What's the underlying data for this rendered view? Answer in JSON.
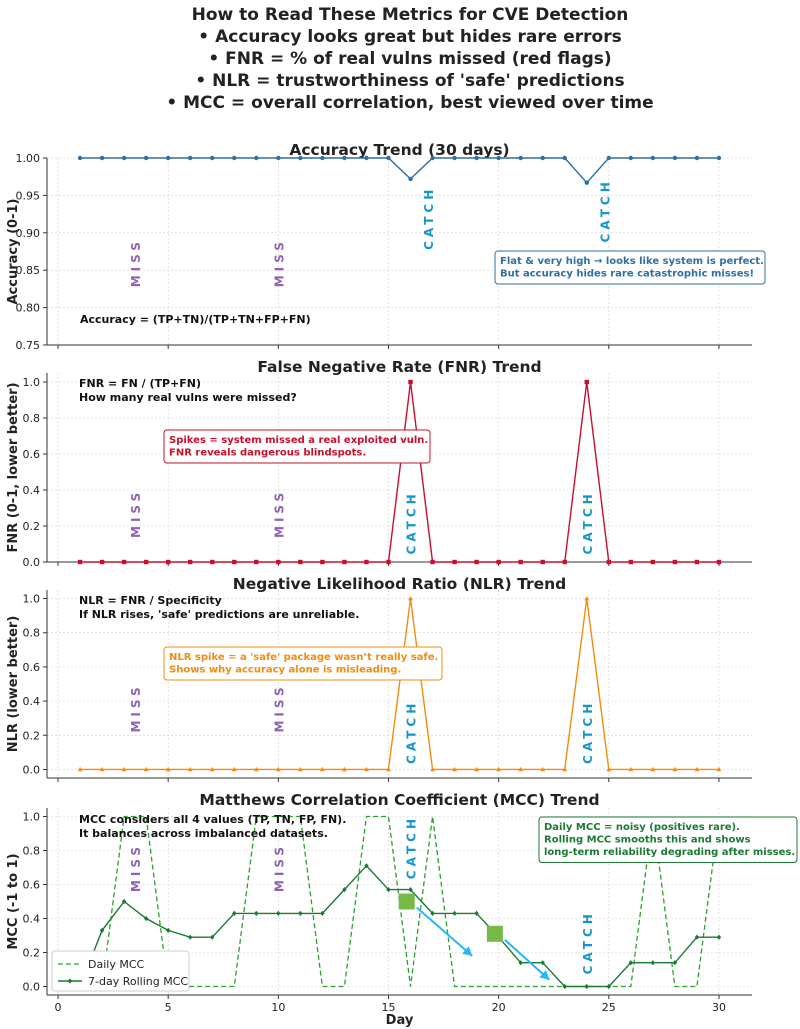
{
  "header": {
    "lines": [
      "How to Read These Metrics for CVE Detection",
      "• Accuracy looks great but hides rare errors",
      "• FNR = % of real vulns missed (red flags)",
      "• NLR = trustworthiness of 'safe' predictions",
      "• MCC = overall correlation, best viewed over time"
    ]
  },
  "colors": {
    "accuracy": "#2f6fa3",
    "fnr": "#c8102e",
    "nlr": "#f28c0f",
    "mcc": "#2ca02c",
    "mcc_rolling": "#1a7a34",
    "miss": "#8e63b3",
    "catch": "#1696c8",
    "arrow": "#29b6f6",
    "marker_square": "#76b947"
  },
  "chart_data": [
    {
      "type": "line",
      "title": "Accuracy Trend (30 days)",
      "ylabel": "Accuracy (0-1)",
      "xlabel": "",
      "x": [
        1,
        2,
        3,
        4,
        5,
        6,
        7,
        8,
        9,
        10,
        11,
        12,
        13,
        14,
        15,
        16,
        17,
        18,
        19,
        20,
        21,
        22,
        23,
        24,
        25,
        26,
        27,
        28,
        29,
        30
      ],
      "ylim": [
        0.75,
        1.0
      ],
      "yticks": [
        0.75,
        0.8,
        0.85,
        0.9,
        0.95,
        1.0
      ],
      "ytick_labels": [
        "0.75",
        "0.80",
        "0.85",
        "0.90",
        "0.95",
        "1.00"
      ],
      "series": [
        {
          "name": "Accuracy",
          "marker": "circle",
          "values": [
            1,
            1,
            1,
            1,
            1,
            1,
            1,
            1,
            1,
            1,
            1,
            1,
            1,
            1,
            1,
            0.972,
            1,
            1,
            1,
            1,
            1,
            1,
            1,
            0.967,
            1,
            1,
            1,
            1,
            1,
            1
          ]
        }
      ],
      "formula": "Accuracy = (TP+TN)/(TP+TN+FP+FN)",
      "callout": [
        "Flat & very high → looks like system is perfect.",
        "But accuracy hides rare catastrophic misses!"
      ],
      "annotations": [
        {
          "text": "MISS",
          "x": 3.5,
          "y": 0.86,
          "kind": "miss"
        },
        {
          "text": "MISS",
          "x": 10,
          "y": 0.86,
          "kind": "miss"
        },
        {
          "text": "CATCH",
          "x": 16.8,
          "y": 0.92,
          "kind": "catch"
        },
        {
          "text": "CATCH",
          "x": 24.8,
          "y": 0.93,
          "kind": "catch"
        }
      ]
    },
    {
      "type": "line",
      "title": "False Negative Rate (FNR) Trend",
      "ylabel": "FNR (0-1, lower better)",
      "xlabel": "",
      "x": [
        1,
        2,
        3,
        4,
        5,
        6,
        7,
        8,
        9,
        10,
        11,
        12,
        13,
        14,
        15,
        16,
        17,
        18,
        19,
        20,
        21,
        22,
        23,
        24,
        25,
        26,
        27,
        28,
        29,
        30
      ],
      "ylim": [
        0,
        1.05
      ],
      "yticks": [
        0.0,
        0.2,
        0.4,
        0.6,
        0.8,
        1.0
      ],
      "ytick_labels": [
        "0.0",
        "0.2",
        "0.4",
        "0.6",
        "0.8",
        "1.0"
      ],
      "series": [
        {
          "name": "FNR",
          "marker": "square",
          "values": [
            0,
            0,
            0,
            0,
            0,
            0,
            0,
            0,
            0,
            0,
            0,
            0,
            0,
            0,
            0,
            1,
            0,
            0,
            0,
            0,
            0,
            0,
            0,
            1,
            0,
            0,
            0,
            0,
            0,
            0
          ]
        }
      ],
      "formula_lines": [
        "FNR = FN / (TP+FN)",
        "How many real vulns were missed?"
      ],
      "callout": [
        "Spikes = system missed a real exploited vuln.",
        "FNR reveals dangerous blindspots."
      ],
      "annotations": [
        {
          "text": "MISS",
          "x": 3.5,
          "y": 0.27,
          "kind": "miss"
        },
        {
          "text": "MISS",
          "x": 10,
          "y": 0.27,
          "kind": "miss"
        },
        {
          "text": "CATCH",
          "x": 16,
          "y": 0.22,
          "kind": "catch"
        },
        {
          "text": "CATCH",
          "x": 24,
          "y": 0.22,
          "kind": "catch"
        }
      ]
    },
    {
      "type": "line",
      "title": "Negative Likelihood Ratio (NLR) Trend",
      "ylabel": "NLR (lower better)",
      "xlabel": "",
      "x": [
        1,
        2,
        3,
        4,
        5,
        6,
        7,
        8,
        9,
        10,
        11,
        12,
        13,
        14,
        15,
        16,
        17,
        18,
        19,
        20,
        21,
        22,
        23,
        24,
        25,
        26,
        27,
        28,
        29,
        30
      ],
      "ylim": [
        -0.05,
        1.05
      ],
      "yticks": [
        0.0,
        0.2,
        0.4,
        0.6,
        0.8,
        1.0
      ],
      "ytick_labels": [
        "0.0",
        "0.2",
        "0.4",
        "0.6",
        "0.8",
        "1.0"
      ],
      "series": [
        {
          "name": "NLR",
          "marker": "triangle",
          "values": [
            0,
            0,
            0,
            0,
            0,
            0,
            0,
            0,
            0,
            0,
            0,
            0,
            0,
            0,
            0,
            1,
            0,
            0,
            0,
            0,
            0,
            0,
            0,
            1,
            0,
            0,
            0,
            0,
            0,
            0
          ]
        }
      ],
      "formula_lines": [
        "NLR = FNR / Specificity",
        "If NLR rises, 'safe' predictions are unreliable."
      ],
      "callout": [
        "NLR spike = a 'safe' package wasn’t really safe.",
        "Shows why accuracy alone is misleading."
      ],
      "annotations": [
        {
          "text": "MISS",
          "x": 3.5,
          "y": 0.36,
          "kind": "miss"
        },
        {
          "text": "MISS",
          "x": 10,
          "y": 0.36,
          "kind": "miss"
        },
        {
          "text": "CATCH",
          "x": 16,
          "y": 0.22,
          "kind": "catch"
        },
        {
          "text": "CATCH",
          "x": 24,
          "y": 0.22,
          "kind": "catch"
        }
      ]
    },
    {
      "type": "line",
      "title": "Matthews Correlation Coefficient (MCC) Trend",
      "ylabel": "MCC (-1 to 1)",
      "xlabel": "Day",
      "xlim": [
        -0.5,
        31.5
      ],
      "xticks": [
        0,
        5,
        10,
        15,
        20,
        25,
        30
      ],
      "xtick_labels": [
        "0",
        "5",
        "10",
        "15",
        "20",
        "25",
        "30"
      ],
      "x": [
        1,
        2,
        3,
        4,
        5,
        6,
        7,
        8,
        9,
        10,
        11,
        12,
        13,
        14,
        15,
        16,
        17,
        18,
        19,
        20,
        21,
        22,
        23,
        24,
        25,
        26,
        27,
        28,
        29,
        30
      ],
      "ylim": [
        -0.05,
        1.05
      ],
      "yticks": [
        0.0,
        0.2,
        0.4,
        0.6,
        0.8,
        1.0
      ],
      "ytick_labels": [
        "0.0",
        "0.2",
        "0.4",
        "0.6",
        "0.8",
        "1.0"
      ],
      "series": [
        {
          "name": "Daily MCC",
          "style": "dashed",
          "values": [
            0,
            0,
            1,
            1,
            0,
            0,
            0,
            0,
            1,
            1,
            1,
            0,
            0,
            1,
            1,
            0,
            1,
            0,
            0,
            0,
            0,
            0,
            0,
            0,
            0,
            0,
            1,
            0,
            0,
            1
          ]
        },
        {
          "name": "7-day Rolling MCC",
          "style": "solid",
          "marker": "diamond",
          "values": [
            0,
            0.33,
            0.5,
            0.4,
            0.33,
            0.29,
            0.29,
            0.43,
            0.43,
            0.43,
            0.43,
            0.43,
            0.57,
            0.71,
            0.57,
            0.57,
            0.43,
            0.43,
            0.43,
            0.29,
            0.14,
            0.14,
            0,
            0,
            0,
            0.14,
            0.14,
            0.14,
            0.29,
            0.29
          ]
        }
      ],
      "legend": [
        "Daily MCC",
        "7-day Rolling MCC"
      ],
      "legend_loc": "lower-left",
      "formula_lines": [
        "MCC considers all 4 values (TP, TN, FP, FN).",
        "It balances across imbalanced datasets."
      ],
      "callout": [
        "Daily MCC = noisy (positives rare).",
        "Rolling MCC smooths this and shows",
        "long-term reliability degrading after misses."
      ],
      "annotations": [
        {
          "text": "MISS",
          "x": 3.5,
          "y": 0.7,
          "kind": "miss"
        },
        {
          "text": "MISS",
          "x": 10,
          "y": 0.7,
          "kind": "miss"
        },
        {
          "text": "CATCH",
          "x": 16,
          "y": 0.82,
          "kind": "catch"
        },
        {
          "text": "CATCH",
          "x": 24,
          "y": 0.26,
          "kind": "catch"
        }
      ],
      "arrows": [
        {
          "from": [
            16.1,
            0.5
          ],
          "to": [
            18.8,
            0.18
          ]
        },
        {
          "from": [
            20.1,
            0.31
          ],
          "to": [
            22.3,
            0.04
          ]
        }
      ]
    }
  ]
}
